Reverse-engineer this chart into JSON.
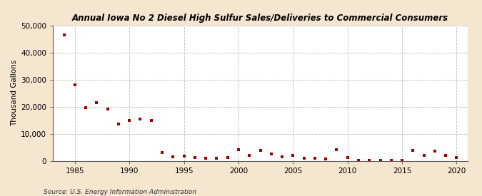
{
  "title": "Annual Iowa No 2 Diesel High Sulfur Sales/Deliveries to Commercial Consumers",
  "ylabel": "Thousand Gallons",
  "source": "Source: U.S. Energy Information Administration",
  "background_color": "#f5e6cf",
  "plot_bg_color": "#ffffff",
  "marker_color": "#990000",
  "grid_color": "#bbbbbb",
  "xlim": [
    1983,
    2021
  ],
  "ylim": [
    0,
    50000
  ],
  "yticks": [
    0,
    10000,
    20000,
    30000,
    40000,
    50000
  ],
  "xticks": [
    1985,
    1990,
    1995,
    2000,
    2005,
    2010,
    2015,
    2020
  ],
  "years": [
    1984,
    1985,
    1986,
    1987,
    1988,
    1989,
    1990,
    1991,
    1992,
    1993,
    1994,
    1995,
    1996,
    1997,
    1998,
    1999,
    2000,
    2001,
    2002,
    2003,
    2004,
    2005,
    2006,
    2007,
    2008,
    2009,
    2010,
    2011,
    2012,
    2013,
    2014,
    2015,
    2016,
    2017,
    2018,
    2019,
    2020
  ],
  "values": [
    46500,
    28000,
    19500,
    21500,
    19000,
    13500,
    14800,
    15500,
    14800,
    3000,
    1500,
    1800,
    1200,
    1000,
    800,
    1200,
    4200,
    2000,
    3800,
    2500,
    1500,
    2000,
    1000,
    800,
    700,
    4000,
    1100,
    200,
    150,
    200,
    150,
    100,
    3800,
    2000,
    3500,
    2000,
    1200
  ]
}
